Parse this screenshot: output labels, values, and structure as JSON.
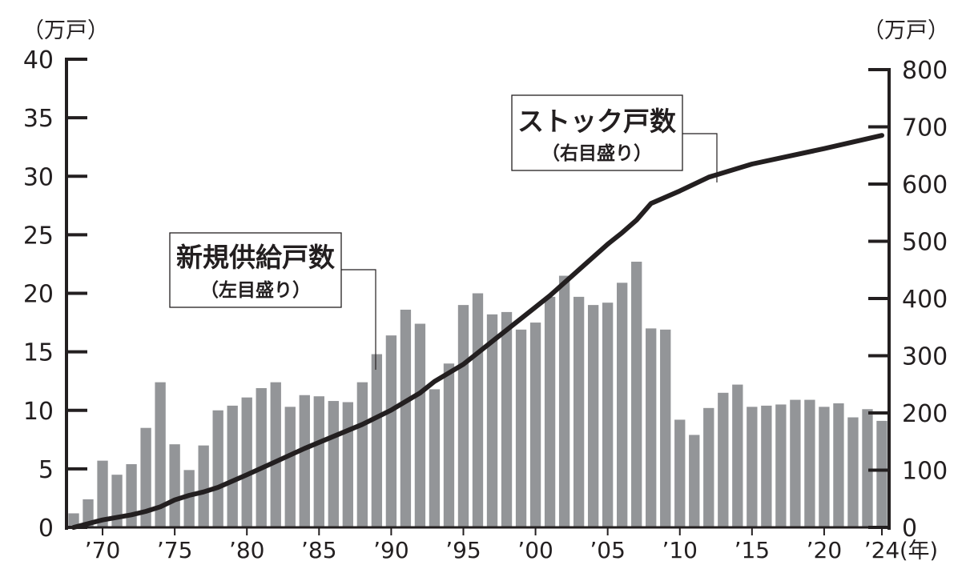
{
  "chart_data": {
    "type": "bar+line",
    "left_unit": "（万戸）",
    "right_unit": "（万戸）",
    "x_unit": "(年)",
    "left_ylim": [
      0,
      40
    ],
    "right_ylim": [
      0,
      800
    ],
    "left_ticks": [
      "40",
      "35",
      "30",
      "25",
      "20",
      "15",
      "10",
      "5",
      "0"
    ],
    "right_ticks": [
      "800",
      "700",
      "600",
      "500",
      "400",
      "300",
      "200",
      "100",
      "0"
    ],
    "x_tick_labels": [
      "’70",
      "’75",
      "’80",
      "’85",
      "’90",
      "’95",
      "’00",
      "’05",
      "’10",
      "’15",
      "’20",
      "’24"
    ],
    "x_tick_years": [
      1970,
      1975,
      1980,
      1985,
      1990,
      1995,
      2000,
      2005,
      2010,
      2015,
      2020,
      2024
    ],
    "colors": {
      "bar": "#939598",
      "line": "#231f20",
      "axis": "#231f20"
    },
    "bar_series": {
      "name": "新規供給戸数",
      "axis": "left",
      "years": [
        1968,
        1969,
        1970,
        1971,
        1972,
        1973,
        1974,
        1975,
        1976,
        1977,
        1978,
        1979,
        1980,
        1981,
        1982,
        1983,
        1984,
        1985,
        1986,
        1987,
        1988,
        1989,
        1990,
        1991,
        1992,
        1993,
        1994,
        1995,
        1996,
        1997,
        1998,
        1999,
        2000,
        2001,
        2002,
        2003,
        2004,
        2005,
        2006,
        2007,
        2008,
        2009,
        2010,
        2011,
        2012,
        2013,
        2014,
        2015,
        2016,
        2017,
        2018,
        2019,
        2020,
        2021,
        2022,
        2023,
        2024
      ],
      "values": [
        1.2,
        2.4,
        5.7,
        4.5,
        5.4,
        8.5,
        12.4,
        7.1,
        4.9,
        7.0,
        10.0,
        10.4,
        11.1,
        11.9,
        12.4,
        10.3,
        11.3,
        11.2,
        10.8,
        10.7,
        12.4,
        14.8,
        16.4,
        18.6,
        17.4,
        11.8,
        14.0,
        19.0,
        20.0,
        18.2,
        18.4,
        16.9,
        17.5,
        19.7,
        21.5,
        19.7,
        19.0,
        19.2,
        20.9,
        22.7,
        17.0,
        16.9,
        9.2,
        7.9,
        10.2,
        11.5,
        12.2,
        10.3,
        10.4,
        10.5,
        10.9,
        10.9,
        10.3,
        10.6,
        9.4,
        10.1,
        9.1
      ]
    },
    "line_series": {
      "name": "ストック戸数",
      "axis": "right",
      "years": [
        1968,
        1970,
        1972,
        1973,
        1974,
        1975,
        1976,
        1977,
        1978,
        1980,
        1982,
        1984,
        1986,
        1988,
        1990,
        1992,
        1993,
        1995,
        1997,
        1999,
        2001,
        2003,
        2005,
        2006,
        2007,
        2008,
        2010,
        2012,
        2015,
        2020,
        2024
      ],
      "values": [
        0,
        13,
        22,
        28,
        36,
        48,
        56,
        62,
        70,
        92,
        115,
        138,
        159,
        180,
        205,
        235,
        255,
        285,
        325,
        365,
        405,
        450,
        495,
        515,
        537,
        566,
        588,
        612,
        635,
        662,
        685
      ]
    },
    "annotations": {
      "stock": {
        "title": "ストック戸数",
        "sub": "（右目盛り）"
      },
      "supply": {
        "title": "新規供給戸数",
        "sub": "（左目盛り）"
      }
    }
  }
}
